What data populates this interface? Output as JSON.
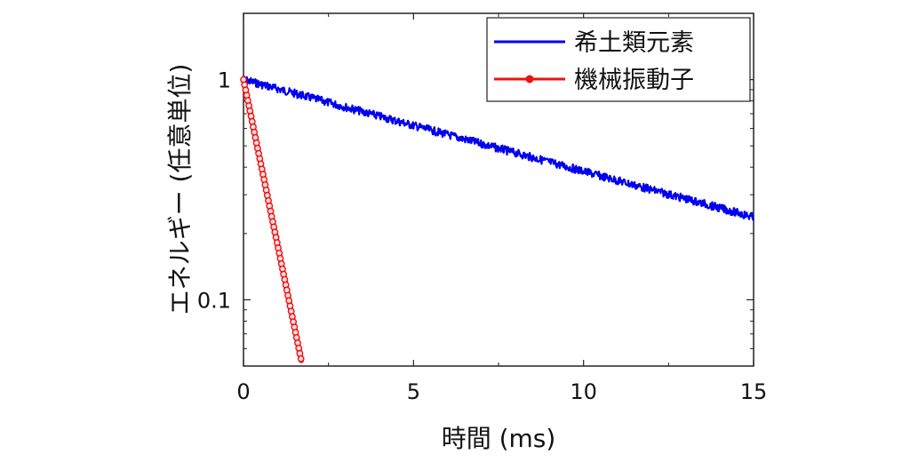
{
  "chart_data": {
    "type": "line",
    "xlabel": "時間 (ms)",
    "ylabel": "エネルギー (任意単位)",
    "xlim": [
      0,
      15
    ],
    "ylim": [
      0.05,
      2
    ],
    "y_scale": "log",
    "x_ticks": [
      0,
      5,
      10,
      15
    ],
    "x_tick_labels": [
      "0",
      "5",
      "10",
      "15"
    ],
    "y_ticks": [
      0.1,
      1
    ],
    "y_tick_labels": [
      "0.1",
      "1"
    ],
    "grid": false,
    "legend_position": "top-right",
    "series": [
      {
        "name": "希土類元素",
        "color": "#0000ee",
        "marker": "none",
        "x": [
          0,
          1.5,
          3,
          4.5,
          6,
          7.5,
          9,
          10.5,
          12,
          13.5,
          15
        ],
        "y": [
          1.0,
          0.866,
          0.75,
          0.649,
          0.562,
          0.487,
          0.422,
          0.365,
          0.316,
          0.274,
          0.237
        ]
      },
      {
        "name": "機械振動子",
        "color": "#ee1111",
        "marker": "circle",
        "x": [
          0,
          0.2,
          0.4,
          0.6,
          0.8,
          1.0,
          1.2,
          1.4,
          1.6,
          1.7
        ],
        "y": [
          1.0,
          0.71,
          0.5,
          0.355,
          0.251,
          0.178,
          0.126,
          0.089,
          0.063,
          0.053
        ]
      }
    ]
  }
}
